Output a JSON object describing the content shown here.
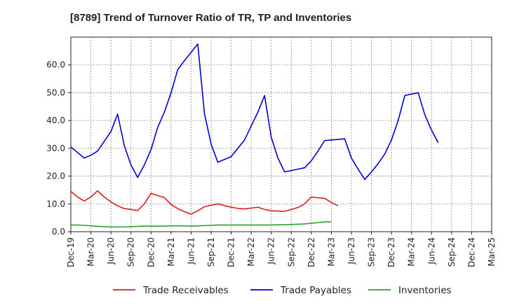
{
  "chart_data": {
    "type": "line",
    "title": "[8789]  Trend of Turnover Ratio of TR, TP and Inventories",
    "xlabel": "",
    "ylabel": "",
    "ylim": [
      0,
      70
    ],
    "yticks": [
      "0.0",
      "10.0",
      "20.0",
      "30.0",
      "40.0",
      "50.0",
      "60.0"
    ],
    "ytick_values": [
      0,
      10,
      20,
      30,
      40,
      50,
      60
    ],
    "xticks": [
      "Dec-19",
      "Mar-20",
      "Jun-20",
      "Sep-20",
      "Dec-20",
      "Mar-21",
      "Jun-21",
      "Sep-21",
      "Dec-21",
      "Mar-22",
      "Jun-22",
      "Sep-22",
      "Dec-22",
      "Mar-23",
      "Jun-23",
      "Sep-23",
      "Dec-23",
      "Mar-24",
      "Jun-24",
      "Sep-24",
      "Dec-24",
      "Mar-25"
    ],
    "grid": true,
    "legend_position": "bottom",
    "series": [
      {
        "name": "Trade Receivables",
        "color": "#e31a1c",
        "values": [
          14.5,
          12.5,
          11.0,
          12.5,
          14.7,
          12.5,
          10.7,
          9.3,
          8.3,
          8.0,
          7.6,
          10.0,
          13.8,
          13.0,
          12.3,
          9.8,
          8.3,
          7.2,
          6.3,
          7.5,
          9.0,
          9.5,
          10.0,
          9.4,
          8.8,
          8.4,
          8.2,
          8.5,
          8.8,
          8.0,
          7.5,
          7.4,
          7.3,
          8.0,
          8.7,
          10.0,
          12.5,
          12.2,
          12.0,
          10.5,
          9.3
        ]
      },
      {
        "name": "Trade Payables",
        "color": "#0000cc",
        "values": [
          30.5,
          28.5,
          26.5,
          27.5,
          29.0,
          32.5,
          36.0,
          42.3,
          31.0,
          24.0,
          19.5,
          24.0,
          29.5,
          37.5,
          43.0,
          50.0,
          58.3,
          61.5,
          64.5,
          67.5,
          42.5,
          31.5,
          25.0,
          26.0,
          27.0,
          30.0,
          33.0,
          38.0,
          43.0,
          49.0,
          34.0,
          26.5,
          21.5,
          22.0,
          22.5,
          23.0,
          25.5,
          29.0,
          32.8,
          33.0,
          33.2,
          33.4,
          26.5,
          22.5,
          18.8,
          21.5,
          24.5,
          28.0,
          33.0,
          40.0,
          49.0,
          49.5,
          50.0,
          42.0,
          36.5,
          32.0
        ]
      },
      {
        "name": "Inventories",
        "color": "#2ca02c",
        "values": [
          2.4,
          2.4,
          2.3,
          2.1,
          1.9,
          1.8,
          1.7,
          1.7,
          1.7,
          1.8,
          1.9,
          2.0,
          2.0,
          2.0,
          2.0,
          2.1,
          2.1,
          2.1,
          2.0,
          2.1,
          2.2,
          2.3,
          2.4,
          2.4,
          2.4,
          2.4,
          2.4,
          2.4,
          2.4,
          2.4,
          2.4,
          2.5,
          2.5,
          2.6,
          2.7,
          2.8,
          3.0,
          3.3,
          3.5,
          3.6
        ]
      }
    ]
  }
}
